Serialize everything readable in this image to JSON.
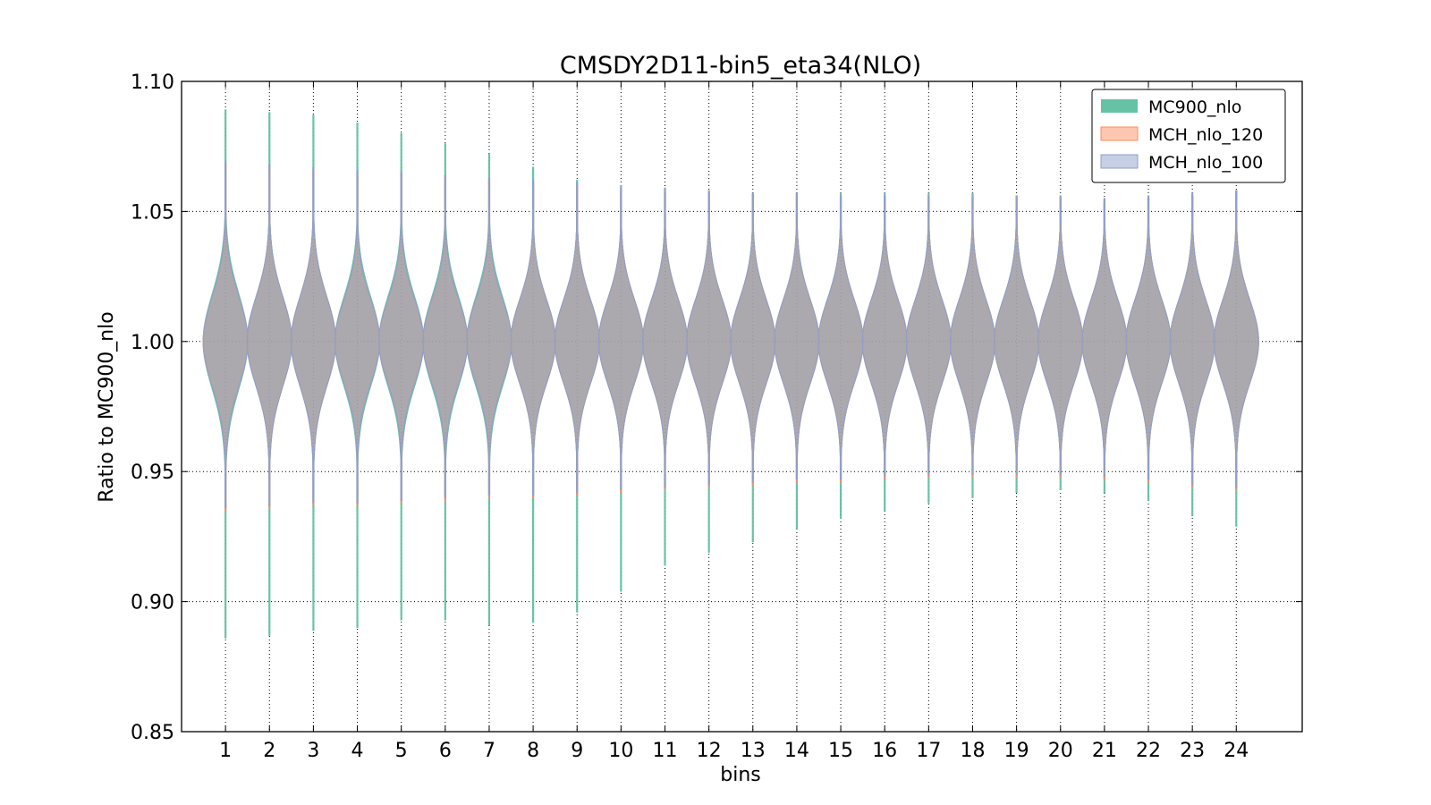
{
  "chart_data": {
    "type": "violin",
    "title": "CMSDY2D11-bin5_eta34(NLO)",
    "xlabel": "bins",
    "ylabel": "Ratio to MC900_nlo",
    "ylim": [
      0.85,
      1.1
    ],
    "yticks": [
      "0.85",
      "0.90",
      "0.95",
      "1.00",
      "1.05",
      "1.10"
    ],
    "categories": [
      "1",
      "2",
      "3",
      "4",
      "5",
      "6",
      "7",
      "8",
      "9",
      "10",
      "11",
      "12",
      "13",
      "14",
      "15",
      "16",
      "17",
      "18",
      "19",
      "20",
      "21",
      "22",
      "23",
      "24"
    ],
    "grid": true,
    "legend_position": "top-right",
    "series": [
      {
        "name": "MC900_nlo",
        "color": "#66c2a5",
        "min": [
          0.886,
          0.887,
          0.889,
          0.89,
          0.893,
          0.893,
          0.891,
          0.892,
          0.896,
          0.904,
          0.914,
          0.919,
          0.923,
          0.928,
          0.932,
          0.935,
          0.938,
          0.94,
          0.942,
          0.943,
          0.942,
          0.939,
          0.933,
          0.929
        ],
        "max": [
          1.089,
          1.088,
          1.087,
          1.084,
          1.08,
          1.076,
          1.072,
          1.067,
          1.062,
          1.058,
          1.057,
          1.057,
          1.057,
          1.057,
          1.057,
          1.057,
          1.057,
          1.057,
          1.056,
          1.055,
          1.053,
          1.055,
          1.056,
          1.058
        ],
        "median": [
          1.0,
          1.0,
          1.0,
          1.0,
          1.0,
          1.0,
          1.0,
          1.0,
          1.0,
          1.0,
          1.0,
          1.0,
          1.0,
          1.0,
          1.0,
          1.0,
          1.0,
          1.0,
          1.0,
          1.0,
          1.0,
          1.0,
          1.0,
          1.0
        ],
        "sigma": [
          0.018,
          0.017,
          0.017,
          0.017,
          0.017,
          0.017,
          0.017,
          0.016,
          0.016,
          0.016,
          0.016,
          0.016,
          0.016,
          0.016,
          0.016,
          0.016,
          0.016,
          0.016,
          0.016,
          0.016,
          0.016,
          0.016,
          0.016,
          0.016
        ]
      },
      {
        "name": "MCH_nlo_120",
        "color": "#fc8d62",
        "min": [
          0.935,
          0.936,
          0.937,
          0.937,
          0.938,
          0.939,
          0.94,
          0.94,
          0.941,
          0.942,
          0.943,
          0.944,
          0.945,
          0.946,
          0.946,
          0.947,
          0.948,
          0.948,
          0.948,
          0.948,
          0.947,
          0.946,
          0.944,
          0.943
        ],
        "max": [
          1.068,
          1.067,
          1.066,
          1.065,
          1.064,
          1.063,
          1.062,
          1.061,
          1.06,
          1.059,
          1.058,
          1.057,
          1.056,
          1.056,
          1.055,
          1.055,
          1.055,
          1.055,
          1.055,
          1.055,
          1.054,
          1.055,
          1.056,
          1.057
        ],
        "median": [
          1.0,
          1.0,
          1.0,
          1.0,
          1.0,
          1.0,
          1.0,
          1.0,
          1.0,
          1.0,
          1.0,
          1.0,
          1.0,
          1.0,
          1.0,
          1.0,
          1.0,
          1.0,
          1.0,
          1.0,
          1.0,
          1.0,
          1.0,
          1.0
        ],
        "sigma": [
          0.017,
          0.017,
          0.017,
          0.016,
          0.016,
          0.016,
          0.016,
          0.016,
          0.016,
          0.016,
          0.016,
          0.016,
          0.016,
          0.016,
          0.016,
          0.016,
          0.016,
          0.016,
          0.016,
          0.016,
          0.016,
          0.016,
          0.016,
          0.016
        ]
      },
      {
        "name": "MCH_nlo_100",
        "color": "#8da0cb",
        "min": [
          0.936,
          0.937,
          0.938,
          0.938,
          0.939,
          0.94,
          0.941,
          0.941,
          0.942,
          0.943,
          0.944,
          0.945,
          0.946,
          0.947,
          0.947,
          0.948,
          0.949,
          0.949,
          0.949,
          0.949,
          0.948,
          0.947,
          0.945,
          0.944
        ],
        "max": [
          1.069,
          1.068,
          1.067,
          1.066,
          1.065,
          1.064,
          1.063,
          1.062,
          1.061,
          1.06,
          1.059,
          1.058,
          1.057,
          1.057,
          1.056,
          1.056,
          1.056,
          1.056,
          1.056,
          1.056,
          1.055,
          1.056,
          1.057,
          1.058
        ],
        "median": [
          1.0,
          1.0,
          1.0,
          1.0,
          1.0,
          1.0,
          1.0,
          1.0,
          1.0,
          1.0,
          1.0,
          1.0,
          1.0,
          1.0,
          1.0,
          1.0,
          1.0,
          1.0,
          1.0,
          1.0,
          1.0,
          1.0,
          1.0,
          1.0
        ],
        "sigma": [
          0.017,
          0.017,
          0.017,
          0.016,
          0.016,
          0.016,
          0.016,
          0.016,
          0.016,
          0.016,
          0.016,
          0.016,
          0.016,
          0.016,
          0.016,
          0.016,
          0.016,
          0.016,
          0.016,
          0.016,
          0.016,
          0.016,
          0.016,
          0.016
        ]
      }
    ]
  }
}
